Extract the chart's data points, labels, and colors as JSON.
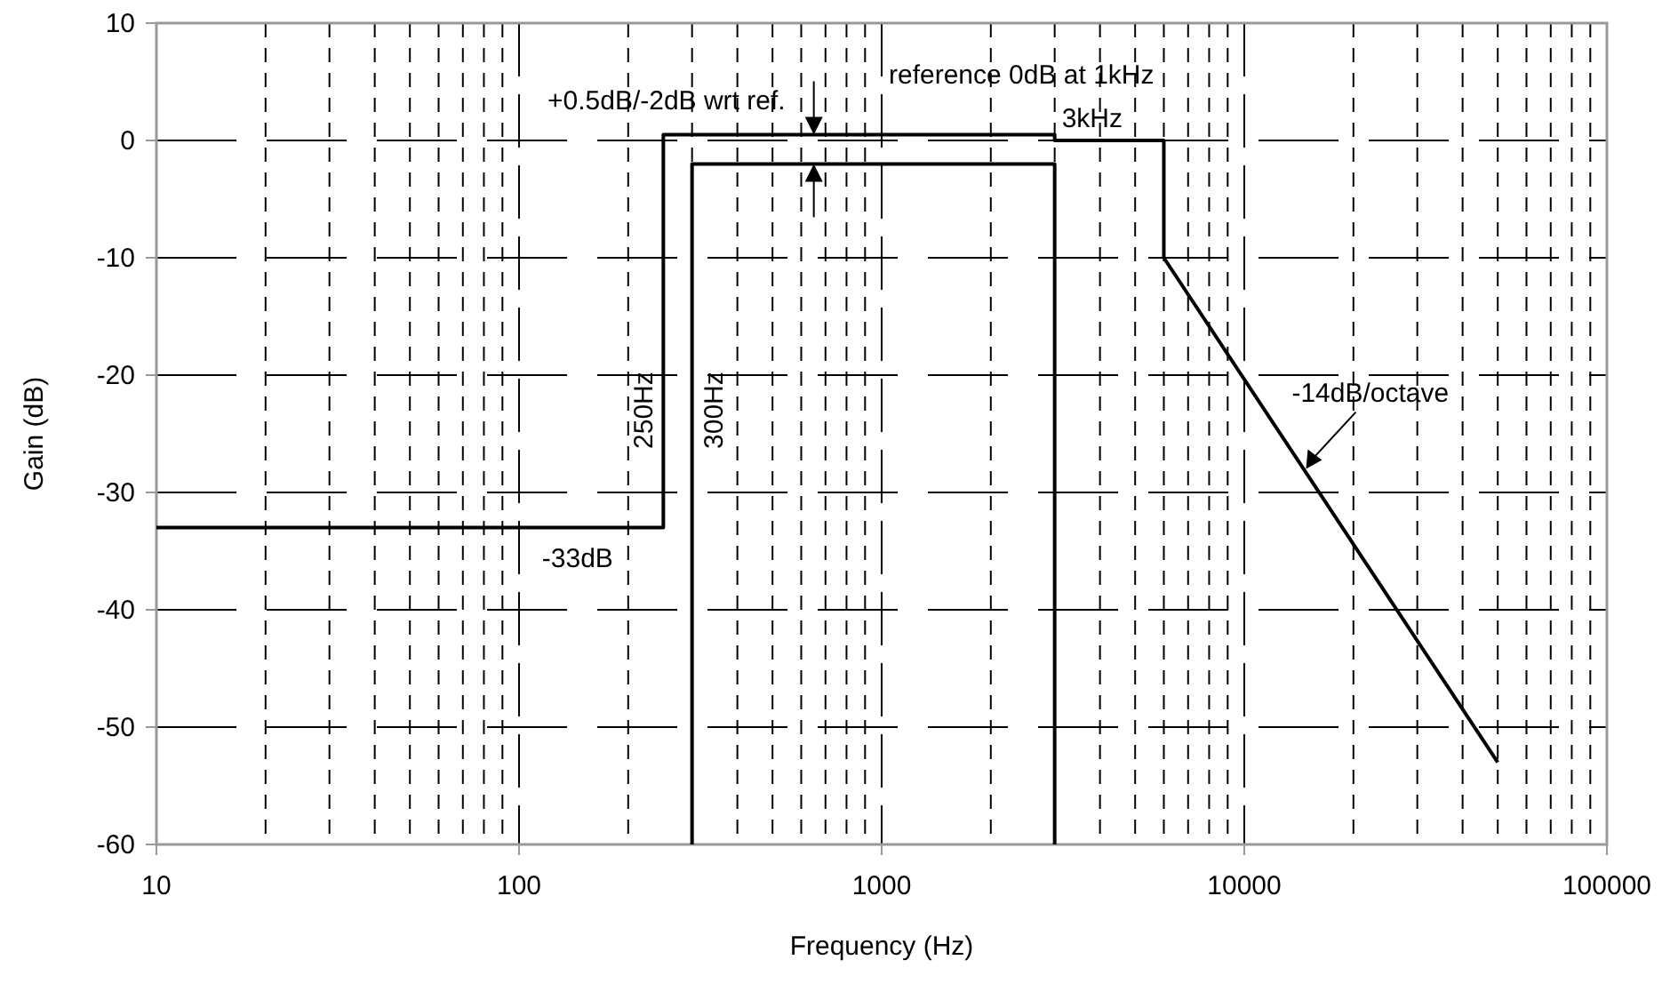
{
  "chart_data": {
    "type": "line",
    "xlabel": "Frequency (Hz)",
    "ylabel": "Gain (dB)",
    "log": "x",
    "xlim": [
      10,
      100000
    ],
    "xticks": [
      10,
      100,
      1000,
      10000,
      100000
    ],
    "ylim": [
      -60,
      10
    ],
    "yticks": [
      -60,
      -50,
      -40,
      -30,
      -20,
      -10,
      0,
      10
    ],
    "grid": true,
    "line_style": "solid",
    "marker": "none",
    "series": [
      {
        "color": "#000000",
        "x": [
          10,
          250,
          250,
          3000,
          3000,
          6000,
          6000,
          50000
        ],
        "values": [
          -33,
          -33,
          0.5,
          0.5,
          0,
          0,
          -10,
          -53
        ]
      },
      {
        "color": "#000000",
        "x": [
          300,
          300,
          3000,
          3000
        ],
        "values": [
          -60,
          -2,
          -2,
          -60
        ]
      }
    ],
    "annotations": [
      {
        "text": "+0.5dB/-2dB wrt ref.",
        "x": 650,
        "y": 0.5
      },
      {
        "text": "reference 0dB at 1kHz",
        "x": 1000,
        "y": 0
      },
      {
        "text": "3kHz",
        "x": 3000,
        "y": 0.5
      },
      {
        "text": "250Hz",
        "x": 250,
        "y": -23
      },
      {
        "text": "300Hz",
        "x": 300,
        "y": -23
      },
      {
        "text": "-33dB",
        "x": 145,
        "y": -33
      },
      {
        "text": "-14dB/octave",
        "x": 14800,
        "y": -28
      }
    ]
  }
}
